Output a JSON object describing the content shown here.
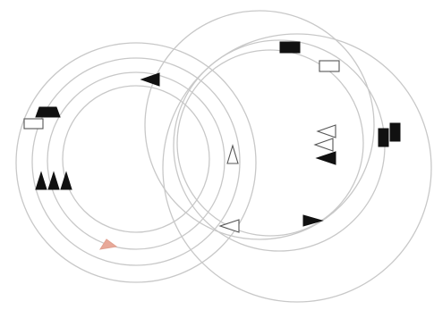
{
  "game": {
    "board": "concentric-ring-board"
  },
  "colors": {
    "background": "#ffffff",
    "ring": "#c8c8c8",
    "solid_piece": "#111111",
    "hollow_piece_outline": "#555555",
    "accent_piece": "#e8a898"
  },
  "pieces": [
    {
      "id": "solid-arrow-top-left",
      "kind": "arrow",
      "style": "solid",
      "direction": "left"
    },
    {
      "id": "solid-trapezoid-left",
      "kind": "trapezoid",
      "style": "solid"
    },
    {
      "id": "hollow-rect-left",
      "kind": "rectangle",
      "style": "hollow"
    },
    {
      "id": "solid-triangle-left-1",
      "kind": "triangle",
      "style": "solid",
      "direction": "up"
    },
    {
      "id": "solid-triangle-left-2",
      "kind": "triangle",
      "style": "solid",
      "direction": "up"
    },
    {
      "id": "solid-triangle-left-3",
      "kind": "triangle",
      "style": "solid",
      "direction": "up"
    },
    {
      "id": "accent-triangle-bottom-left",
      "kind": "triangle",
      "style": "accent",
      "direction": "up"
    },
    {
      "id": "hollow-triangle-center",
      "kind": "triangle",
      "style": "hollow",
      "direction": "up"
    },
    {
      "id": "hollow-arrow-bottom-center",
      "kind": "arrow",
      "style": "hollow",
      "direction": "left"
    },
    {
      "id": "solid-arrow-bottom-right",
      "kind": "arrow",
      "style": "solid",
      "direction": "right"
    },
    {
      "id": "solid-rect-top-right",
      "kind": "rectangle",
      "style": "solid"
    },
    {
      "id": "hollow-rect-top-right",
      "kind": "rectangle",
      "style": "hollow"
    },
    {
      "id": "hollow-arrow-right-1",
      "kind": "arrow",
      "style": "hollow",
      "direction": "left"
    },
    {
      "id": "hollow-arrow-right-2",
      "kind": "arrow",
      "style": "hollow",
      "direction": "left"
    },
    {
      "id": "solid-arrow-right",
      "kind": "arrow",
      "style": "solid",
      "direction": "left"
    },
    {
      "id": "solid-rect-right-1",
      "kind": "rectangle",
      "style": "solid"
    },
    {
      "id": "solid-rect-right-2",
      "kind": "rectangle",
      "style": "solid"
    }
  ]
}
